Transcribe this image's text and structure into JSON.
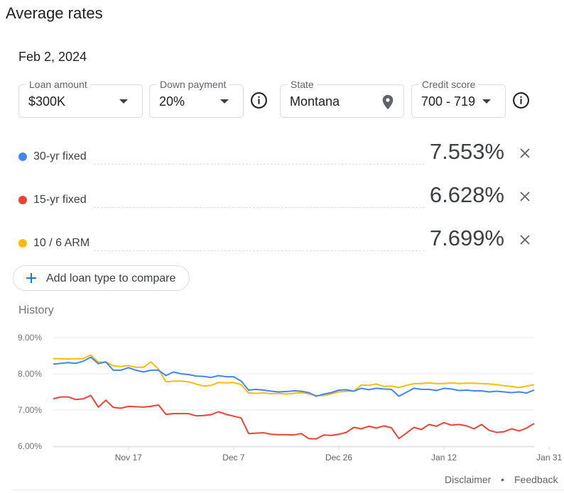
{
  "page": {
    "title": "Average rates",
    "date": "Feb 2, 2024"
  },
  "filters": {
    "loan_amount": {
      "label": "Loan amount",
      "value": "$300K"
    },
    "down_payment": {
      "label": "Down payment",
      "value": "20%"
    },
    "state": {
      "label": "State",
      "value": "Montana"
    },
    "credit_score": {
      "label": "Credit score",
      "value": "700 - 719"
    }
  },
  "rates": [
    {
      "label": "30-yr fixed",
      "value": "7.553%",
      "color": "#4285f4"
    },
    {
      "label": "15-yr fixed",
      "value": "6.628%",
      "color": "#ea4335"
    },
    {
      "label": "10 / 6 ARM",
      "value": "7.699%",
      "color": "#fbbc04"
    }
  ],
  "add_button": {
    "label": "Add loan type to compare"
  },
  "history_label": "History",
  "icons": {
    "info": "info-icon",
    "location": "location-pin-icon",
    "close": "close-icon",
    "plus": "plus-icon",
    "dropdown": "caret-down-icon"
  },
  "chart_data": {
    "type": "line",
    "yticks": [
      "9.00%",
      "8.00%",
      "7.00%",
      "6.00%"
    ],
    "ylim": [
      5.9,
      9.0
    ],
    "xticks": [
      {
        "label": "Nov 17",
        "index": 10
      },
      {
        "label": "Dec 7",
        "index": 24
      },
      {
        "label": "Dec 26",
        "index": 38
      },
      {
        "label": "Jan 12",
        "index": 52
      },
      {
        "label": "Jan 31",
        "index": 66
      }
    ],
    "series": [
      {
        "color": "#fbbc04",
        "values": [
          8.42,
          8.42,
          8.41,
          8.42,
          8.42,
          8.52,
          8.32,
          8.33,
          8.22,
          8.2,
          8.23,
          8.18,
          8.18,
          8.33,
          8.13,
          7.78,
          7.8,
          7.8,
          7.78,
          7.72,
          7.66,
          7.68,
          7.76,
          7.75,
          7.76,
          7.7,
          7.47,
          7.46,
          7.47,
          7.45,
          7.46,
          7.44,
          7.46,
          7.48,
          7.45,
          7.4,
          7.4,
          7.45,
          7.5,
          7.52,
          7.52,
          7.69,
          7.68,
          7.72,
          7.65,
          7.66,
          7.62,
          7.68,
          7.73,
          7.73,
          7.75,
          7.73,
          7.73,
          7.75,
          7.73,
          7.74,
          7.74,
          7.73,
          7.72,
          7.7,
          7.67,
          7.65,
          7.62,
          7.66,
          7.699
        ]
      },
      {
        "color": "#4285f4",
        "values": [
          8.27,
          8.29,
          8.31,
          8.29,
          8.35,
          8.46,
          8.28,
          8.33,
          8.1,
          8.1,
          8.17,
          8.1,
          8.05,
          8.1,
          8.1,
          7.95,
          8.05,
          8.0,
          7.98,
          7.94,
          7.93,
          7.9,
          7.95,
          7.92,
          7.92,
          7.8,
          7.55,
          7.57,
          7.55,
          7.52,
          7.5,
          7.51,
          7.53,
          7.52,
          7.48,
          7.38,
          7.44,
          7.48,
          7.55,
          7.56,
          7.52,
          7.6,
          7.56,
          7.6,
          7.58,
          7.57,
          7.38,
          7.49,
          7.6,
          7.57,
          7.57,
          7.54,
          7.6,
          7.58,
          7.54,
          7.55,
          7.53,
          7.53,
          7.5,
          7.52,
          7.5,
          7.48,
          7.5,
          7.47,
          7.553
        ]
      },
      {
        "color": "#ea4335",
        "values": [
          7.31,
          7.36,
          7.36,
          7.29,
          7.31,
          7.4,
          7.08,
          7.27,
          7.07,
          7.05,
          7.1,
          7.09,
          7.08,
          7.1,
          7.14,
          6.88,
          6.9,
          6.9,
          6.9,
          6.84,
          6.85,
          6.87,
          6.95,
          6.88,
          6.83,
          6.78,
          6.35,
          6.36,
          6.37,
          6.33,
          6.32,
          6.32,
          6.31,
          6.35,
          6.21,
          6.2,
          6.31,
          6.3,
          6.33,
          6.38,
          6.52,
          6.48,
          6.55,
          6.5,
          6.56,
          6.51,
          6.21,
          6.36,
          6.52,
          6.46,
          6.6,
          6.55,
          6.65,
          6.58,
          6.6,
          6.56,
          6.48,
          6.6,
          6.44,
          6.38,
          6.4,
          6.48,
          6.42,
          6.5,
          6.628
        ]
      }
    ]
  },
  "footer": {
    "disclaimer": "Disclaimer",
    "separator": "•",
    "feedback": "Feedback"
  }
}
